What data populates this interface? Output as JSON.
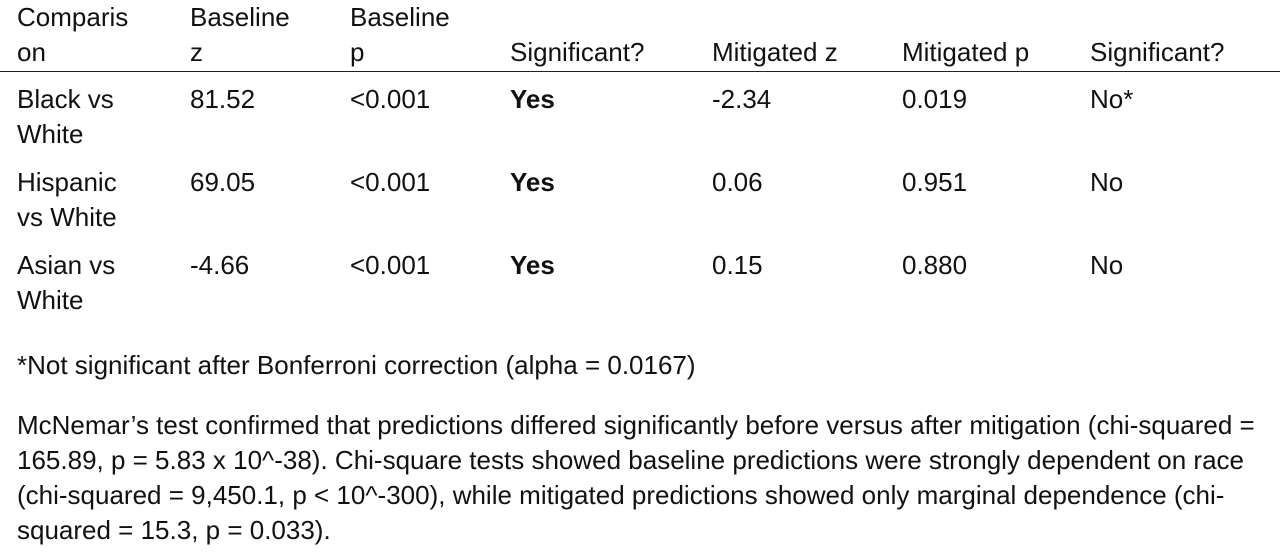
{
  "table": {
    "header": [
      "Comparison",
      "Baseline z",
      "Baseline p",
      "Significant?",
      "Mitigated z",
      "Mitigated p",
      "Significant?"
    ],
    "rows": [
      [
        "Black vs White",
        "81.52",
        "<0.001",
        "Yes",
        "-2.34",
        "0.019",
        "No*"
      ],
      [
        "Hispanic vs White",
        "69.05",
        "<0.001",
        "Yes",
        "0.06",
        "0.951",
        "No"
      ],
      [
        "Asian vs White",
        "-4.66",
        "<0.001",
        "Yes",
        "0.15",
        "0.880",
        "No"
      ]
    ]
  },
  "footnote": "*Not significant after Bonferroni correction (alpha = 0.0167)",
  "paragraph": "McNemar’s test confirmed that predictions differed significantly before versus after mitigation (chi-squared = 165.89, p = 5.83 x 10^-38). Chi-square tests showed baseline predictions were strongly dependent on race (chi-squared = 9,450.1, p < 10^-300), while mitigated predictions showed only marginal dependence (chi-squared = 15.3, p = 0.033)."
}
